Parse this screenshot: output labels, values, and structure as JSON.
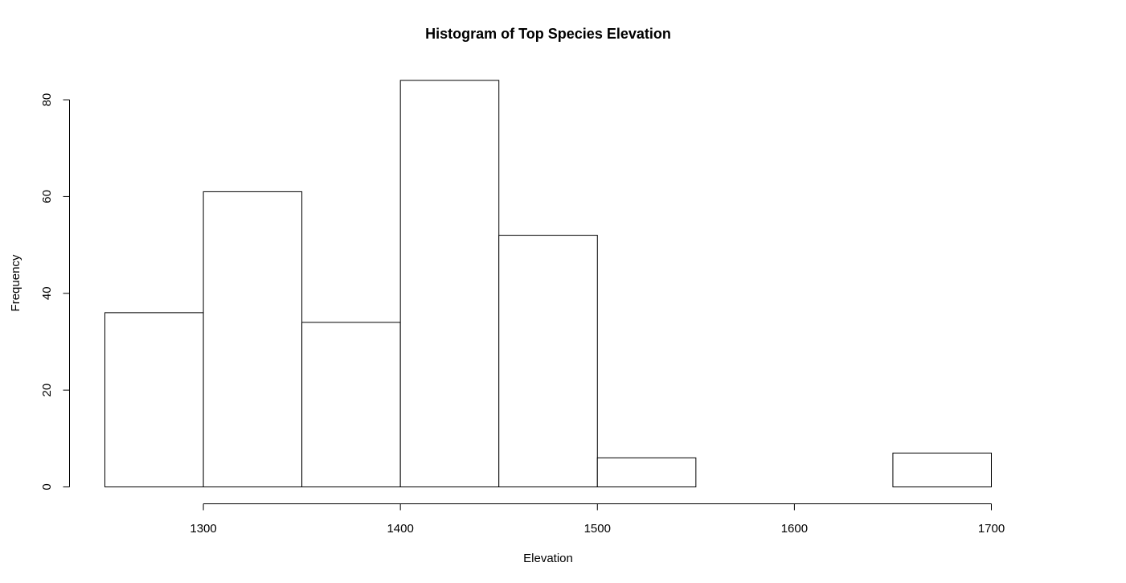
{
  "chart_data": {
    "type": "bar",
    "title": "Histogram of Top Species Elevation",
    "xlabel": "Elevation",
    "ylabel": "Frequency",
    "bins": [
      {
        "start": 1250,
        "end": 1300,
        "count": 36
      },
      {
        "start": 1300,
        "end": 1350,
        "count": 61
      },
      {
        "start": 1350,
        "end": 1400,
        "count": 34
      },
      {
        "start": 1400,
        "end": 1450,
        "count": 84
      },
      {
        "start": 1450,
        "end": 1500,
        "count": 52
      },
      {
        "start": 1500,
        "end": 1550,
        "count": 6
      },
      {
        "start": 1550,
        "end": 1600,
        "count": 0
      },
      {
        "start": 1600,
        "end": 1650,
        "count": 0
      },
      {
        "start": 1650,
        "end": 1700,
        "count": 7
      }
    ],
    "xticks": [
      1300,
      1400,
      1500,
      1600,
      1700
    ],
    "yticks": [
      0,
      20,
      40,
      60,
      80
    ],
    "xlim": [
      1250,
      1700
    ],
    "ylim": [
      0,
      84
    ],
    "grid": false,
    "bar_fill": "#ffffff",
    "bar_stroke": "#000000"
  }
}
